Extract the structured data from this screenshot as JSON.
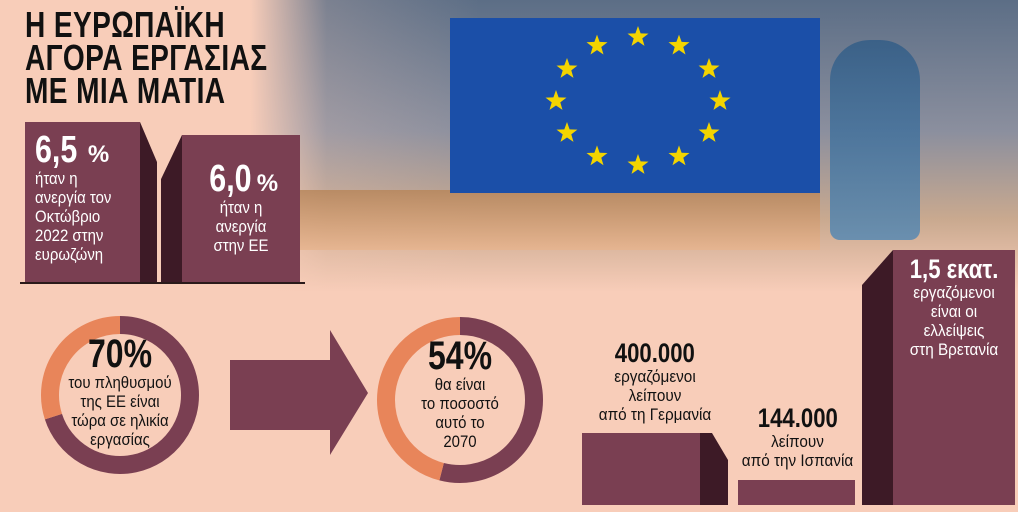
{
  "title": {
    "lines": [
      "Η ΕΥΡΩΠΑΪΚΗ",
      "ΑΓΟΡΑ ΕΡΓΑΣΙΑΣ",
      "ΜΕ ΜΙΑ ΜΑΤΙΑ"
    ]
  },
  "unemployment": [
    {
      "value": "6,5",
      "unit": "%",
      "lines": [
        "ήταν η",
        "ανεργία τον",
        "Οκτώβριο",
        "2022 στην",
        "ευρωζώνη"
      ]
    },
    {
      "value": "6,0",
      "unit": "%",
      "lines": [
        "ήταν η",
        "ανεργία",
        "στην ΕΕ"
      ]
    }
  ],
  "working_age": [
    {
      "value": "70%",
      "percent": 70,
      "lines": [
        "του πληθυσμού",
        "της ΕΕ είναι",
        "τώρα σε ηλικία",
        "εργασίας"
      ]
    },
    {
      "value": "54%",
      "percent": 54,
      "lines": [
        "θα είναι",
        "το ποσοστό",
        "αυτό το",
        "2070"
      ]
    }
  ],
  "shortages": [
    {
      "value": "400.000",
      "lines": [
        "εργαζόμενοι",
        "λείπουν",
        "από τη Γερμανία"
      ]
    },
    {
      "value": "144.000",
      "lines": [
        "λείπουν",
        "από την Ισπανία"
      ]
    },
    {
      "value": "1,5 εκατ.",
      "lines": [
        "εργαζόμενοι",
        "είναι οι",
        "ελλείψεις",
        "στη Βρετανία"
      ]
    }
  ],
  "colors": {
    "background": "#f8cdb9",
    "maroon": "#7a3f52",
    "dark_maroon": "#3d1a26",
    "orange": "#e8855a",
    "flag_blue": "#1b4fa8",
    "star": "#f3d400"
  },
  "photo": {
    "subject": "eu-flag-photo"
  }
}
